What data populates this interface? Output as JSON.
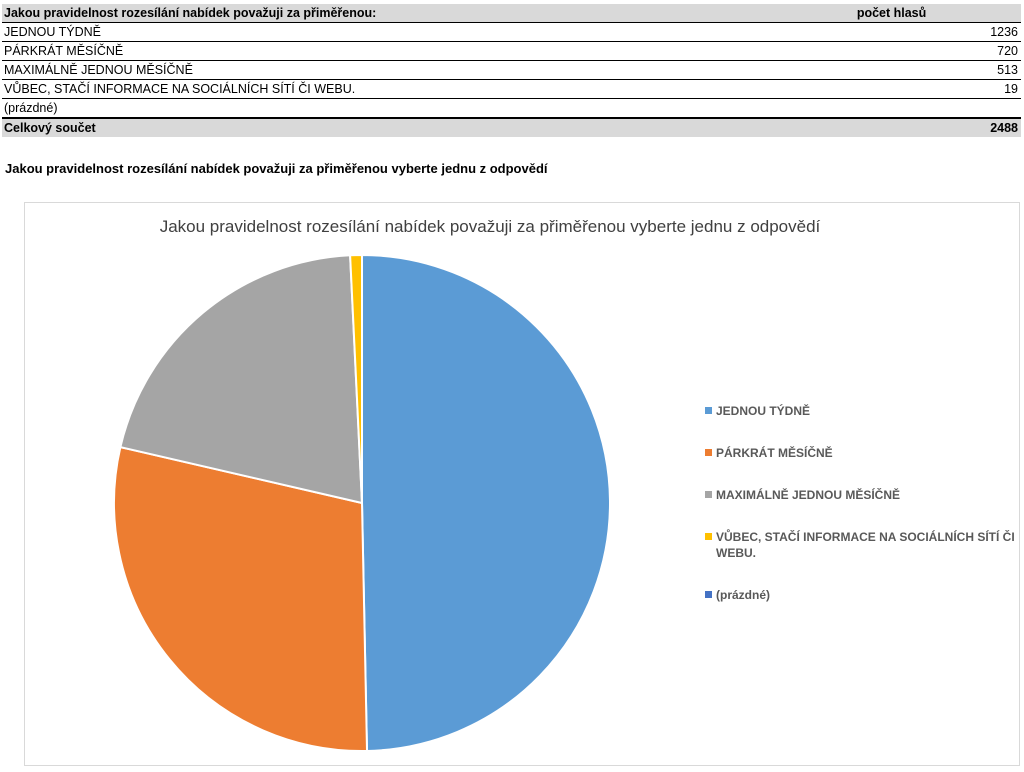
{
  "table": {
    "header": {
      "question": "Jakou pravidelnost rozesílání nabídek považuji za přiměřenou:",
      "count_label": "počet hlasů"
    },
    "rows": [
      {
        "label": "JEDNOU TÝDNĚ",
        "value": "1236"
      },
      {
        "label": "PÁRKRÁT MĚSÍČNĚ",
        "value": "720"
      },
      {
        "label": "MAXIMÁLNĚ JEDNOU MĚSÍČNĚ",
        "value": "513"
      },
      {
        "label": "VŮBEC, STAČÍ INFORMACE NA SOCIÁLNÍCH SÍTÍ ČI WEBU.",
        "value": "19"
      },
      {
        "label": "(prázdné)",
        "value": ""
      }
    ],
    "total": {
      "label": "Celkový součet",
      "value": "2488"
    }
  },
  "section_title": "Jakou pravidelnost rozesílání nabídek považuji za přiměřenou vyberte jednu z odpovědí",
  "chart_data": {
    "type": "pie",
    "title": "Jakou pravidelnost rozesílání nabídek považuji za přiměřenou vyberte jednu z odpovědí",
    "categories": [
      "JEDNOU TÝDNĚ",
      "PÁRKRÁT MĚSÍČNĚ",
      "MAXIMÁLNĚ JEDNOU MĚSÍČNĚ",
      "VŮBEC, STAČÍ INFORMACE NA SOCIÁLNÍCH SÍTÍ ČI WEBU.",
      "(prázdné)"
    ],
    "values": [
      1236,
      720,
      513,
      19,
      0
    ],
    "colors": [
      "#5b9bd5",
      "#ed7d31",
      "#a5a5a5",
      "#ffc000",
      "#4472c4"
    ],
    "legend_position": "right",
    "start_angle": "top, clockwise"
  }
}
